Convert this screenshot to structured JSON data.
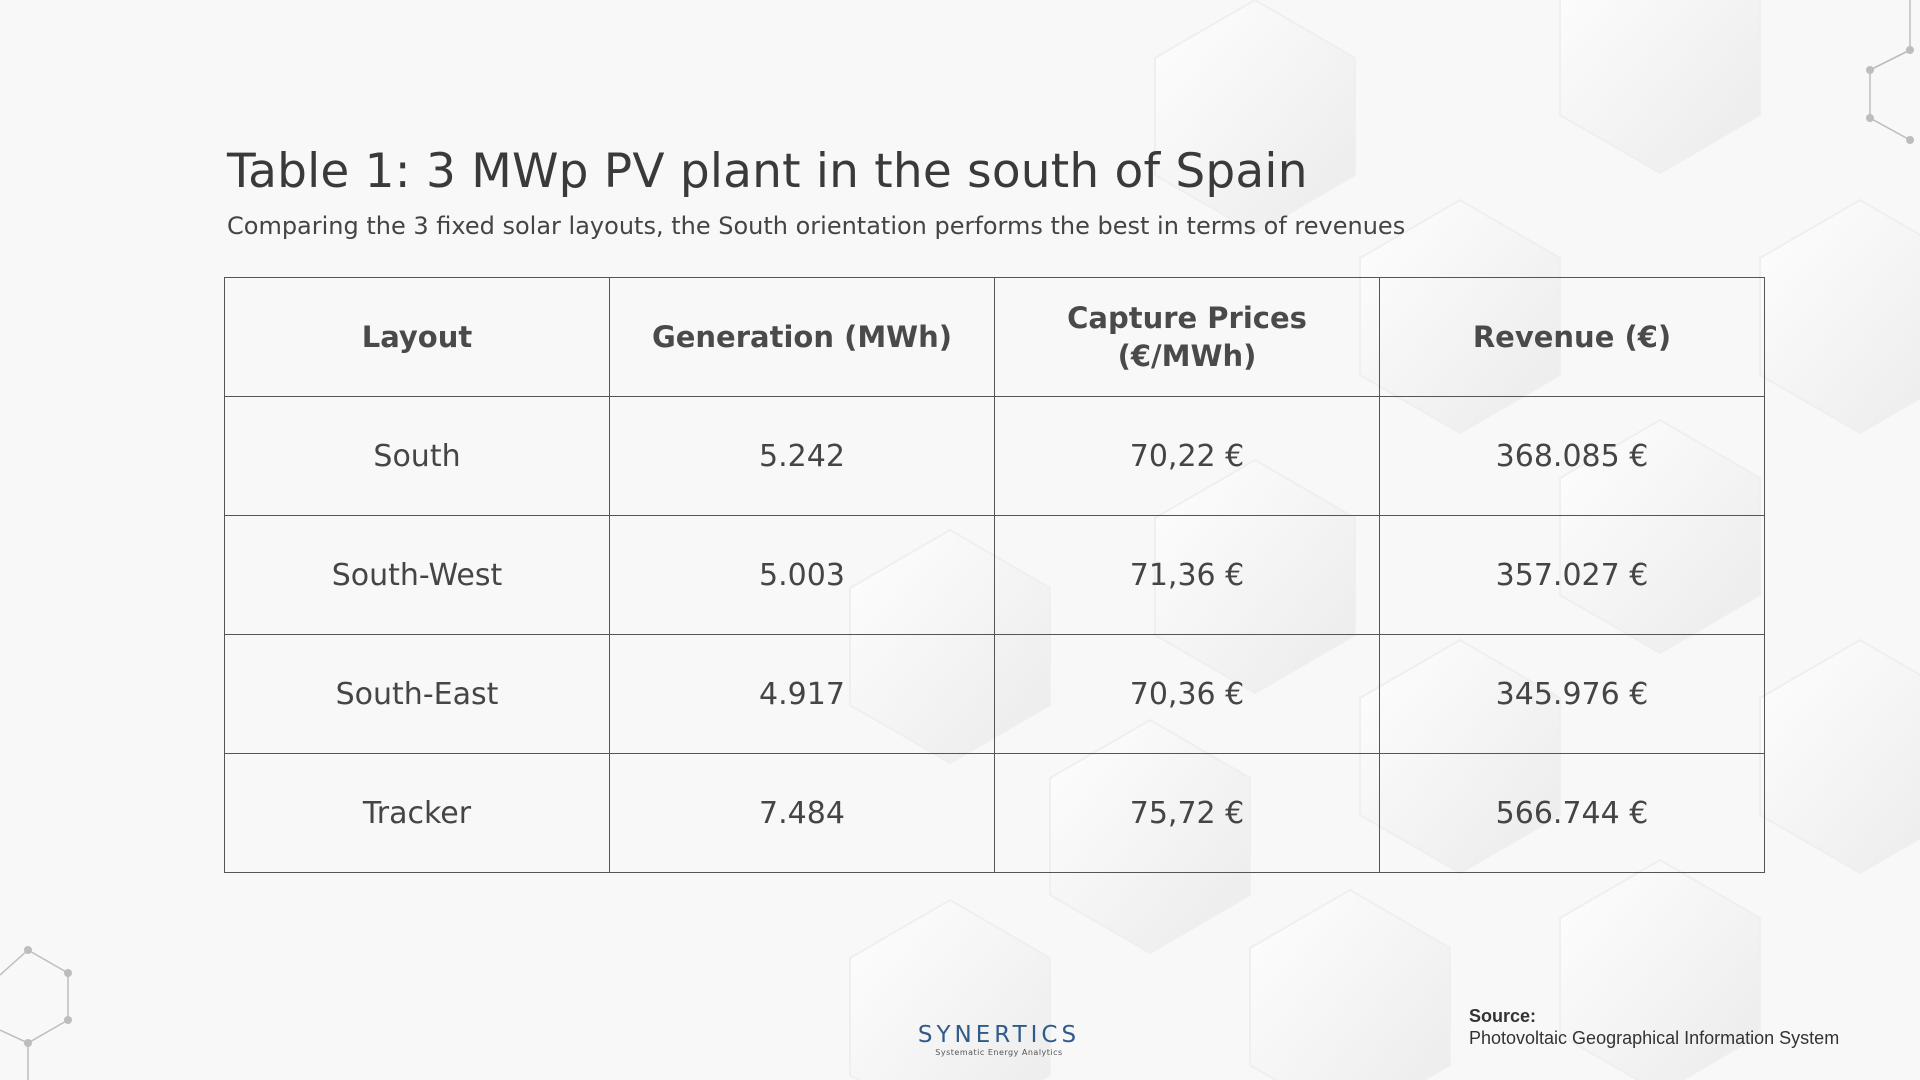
{
  "title": "Table 1: 3 MWp PV plant in the south of Spain",
  "subtitle": "Comparing the 3 fixed solar layouts, the South orientation performs the best in terms of revenues",
  "table": {
    "headers": [
      "Layout",
      "Generation (MWh)",
      "Capture Prices (€/MWh)",
      "Revenue (€)"
    ],
    "rows": [
      [
        "South",
        "5.242",
        "70,22 €",
        "368.085 €"
      ],
      [
        "South-West",
        "5.003",
        "71,36 €",
        "357.027 €"
      ],
      [
        "South-East",
        "4.917",
        "70,36 €",
        "345.976 €"
      ],
      [
        "Tracker",
        "7.484",
        "75,72 €",
        "566.744 €"
      ]
    ]
  },
  "logo": {
    "name": "SYNERTICS",
    "tagline": "Systematic Energy Analytics"
  },
  "source": {
    "label": "Source:",
    "text": "Photovoltaic Geographical Information System"
  },
  "colors": {
    "background": "#f8f8f8",
    "text": "#3e3e3e",
    "brand": "#2f5b8a"
  }
}
